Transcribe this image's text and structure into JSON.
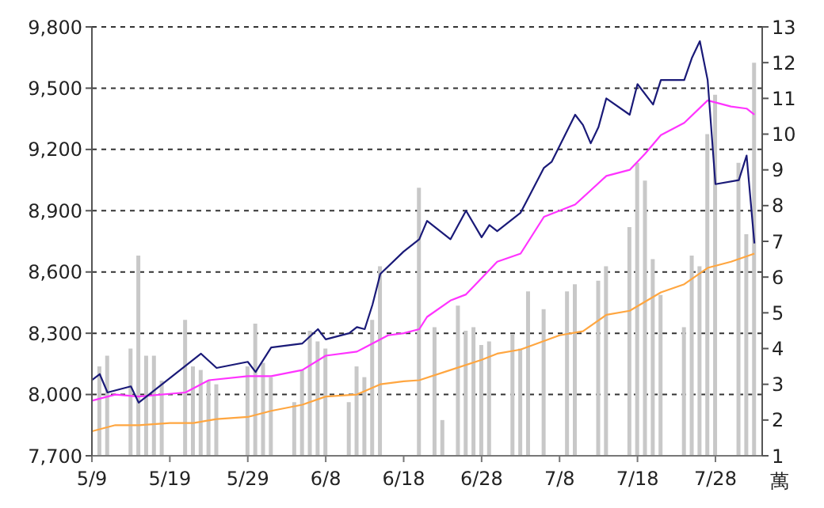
{
  "chart_data": {
    "type": "line",
    "y2label": "萬",
    "xlim": [
      "--05-09",
      "--08-03"
    ],
    "xticks": [
      {
        "value": "--05-09",
        "label": "5/9"
      },
      {
        "value": "--05-19",
        "label": "5/19"
      },
      {
        "value": "--05-29",
        "label": "5/29"
      },
      {
        "value": "--06-08",
        "label": "6/8"
      },
      {
        "value": "--06-18",
        "label": "6/18"
      },
      {
        "value": "--06-28",
        "label": "6/28"
      },
      {
        "value": "--07-08",
        "label": "7/8"
      },
      {
        "value": "--07-18",
        "label": "7/18"
      },
      {
        "value": "--07-28",
        "label": "7/28"
      }
    ],
    "ylim": [
      7700,
      9800
    ],
    "yticks": [
      {
        "value": 7700,
        "label": "7,700"
      },
      {
        "value": 8000,
        "label": "8,000"
      },
      {
        "value": 8300,
        "label": "8,300"
      },
      {
        "value": 8600,
        "label": "8,600"
      },
      {
        "value": 8900,
        "label": "8,900"
      },
      {
        "value": 9200,
        "label": "9,200"
      },
      {
        "value": 9500,
        "label": "9,500"
      },
      {
        "value": 9800,
        "label": "9,800"
      }
    ],
    "y2lim": [
      1,
      13
    ],
    "y2ticks": [
      1,
      2,
      3,
      4,
      5,
      6,
      7,
      8,
      9,
      10,
      11,
      12,
      13
    ],
    "grid": "y",
    "series": [
      {
        "type": "bar",
        "axis": "y2",
        "color": "#c8c8c8",
        "x": [
          "--05-10",
          "--05-11",
          "--05-14",
          "--05-15",
          "--05-16",
          "--05-17",
          "--05-18",
          "--05-21",
          "--05-22",
          "--05-23",
          "--05-24",
          "--05-25",
          "--05-29",
          "--05-30",
          "--05-31",
          "--06-01",
          "--06-04",
          "--06-05",
          "--06-06",
          "--06-07",
          "--06-08",
          "--06-11",
          "--06-12",
          "--06-13",
          "--06-14",
          "--06-15",
          "--06-20",
          "--06-22",
          "--06-23",
          "--06-25",
          "--06-26",
          "--06-27",
          "--06-28",
          "--06-29",
          "--07-02",
          "--07-03",
          "--07-04",
          "--07-06",
          "--07-09",
          "--07-10",
          "--07-13",
          "--07-14",
          "--07-17",
          "--07-18",
          "--07-19",
          "--07-20",
          "--07-21",
          "--07-24",
          "--07-25",
          "--07-26",
          "--07-27",
          "--07-28",
          "--07-31",
          "--08-01",
          "--08-02"
        ],
        "values": [
          3.5,
          3.8,
          4.0,
          6.6,
          3.8,
          3.8,
          3.1,
          4.8,
          3.5,
          3.4,
          3.1,
          3.0,
          3.5,
          4.7,
          3.6,
          3.2,
          2.5,
          3.4,
          4.5,
          4.2,
          4.0,
          2.5,
          3.5,
          3.2,
          4.8,
          6.3,
          8.5,
          4.6,
          2.0,
          5.2,
          4.5,
          4.6,
          4.1,
          4.2,
          4.4,
          4.0,
          5.6,
          5.1,
          5.6,
          5.8,
          5.9,
          6.3,
          7.4,
          9.2,
          8.7,
          6.5,
          5.5,
          4.6,
          6.6,
          6.3,
          10.0,
          11.1,
          9.2,
          7.2,
          12.0
        ]
      },
      {
        "color": "#ffa640",
        "x": [
          "--05-09",
          "--05-12",
          "--05-15",
          "--05-19",
          "--05-22",
          "--05-25",
          "--05-29",
          "--06-01",
          "--06-05",
          "--06-08",
          "--06-12",
          "--06-15",
          "--06-18",
          "--06-20",
          "--06-24",
          "--06-28",
          "--06-30",
          "--07-03",
          "--07-08",
          "--07-11",
          "--07-14",
          "--07-17",
          "--07-21",
          "--07-24",
          "--07-27",
          "--07-30",
          "--08-02"
        ],
        "values": [
          7820,
          7850,
          7850,
          7860,
          7860,
          7880,
          7890,
          7920,
          7950,
          7990,
          8000,
          8050,
          8065,
          8070,
          8120,
          8170,
          8200,
          8220,
          8290,
          8310,
          8390,
          8410,
          8500,
          8540,
          8620,
          8650,
          8690
        ]
      },
      {
        "color": "#ff33ff",
        "x": [
          "--05-09",
          "--05-12",
          "--05-15",
          "--05-21",
          "--05-24",
          "--05-29",
          "--06-01",
          "--06-05",
          "--06-08",
          "--06-12",
          "--06-13",
          "--06-16",
          "--06-18",
          "--06-20",
          "--06-21",
          "--06-24",
          "--06-26",
          "--06-28",
          "--06-30",
          "--07-03",
          "--07-06",
          "--07-10",
          "--07-12",
          "--07-14",
          "--07-17",
          "--07-19",
          "--07-21",
          "--07-24",
          "--07-27",
          "--07-30",
          "--08-01",
          "--08-02"
        ],
        "values": [
          7970,
          8000,
          7990,
          8010,
          8070,
          8090,
          8090,
          8120,
          8190,
          8210,
          8230,
          8290,
          8300,
          8320,
          8380,
          8460,
          8490,
          8570,
          8650,
          8690,
          8870,
          8930,
          9000,
          9070,
          9100,
          9180,
          9270,
          9330,
          9440,
          9410,
          9400,
          9370
        ]
      },
      {
        "color": "#1a1a78",
        "x": [
          "--05-09",
          "--05-10",
          "--05-11",
          "--05-14",
          "--05-15",
          "--05-16",
          "--05-23",
          "--05-25",
          "--05-29",
          "--05-30",
          "--06-01",
          "--06-05",
          "--06-07",
          "--06-08",
          "--06-11",
          "--06-12",
          "--06-13",
          "--06-14",
          "--06-15",
          "--06-18",
          "--06-20",
          "--06-21",
          "--06-24",
          "--06-26",
          "--06-28",
          "--06-29",
          "--06-30",
          "--07-03",
          "--07-06",
          "--07-07",
          "--07-10",
          "--07-11",
          "--07-12",
          "--07-13",
          "--07-14",
          "--07-17",
          "--07-18",
          "--07-20",
          "--07-21",
          "--07-24",
          "--07-25",
          "--07-26",
          "--07-27",
          "--07-28",
          "--07-31",
          "--08-01",
          "--08-02"
        ],
        "values": [
          8070,
          8100,
          8010,
          8040,
          7960,
          7990,
          8200,
          8130,
          8160,
          8110,
          8230,
          8250,
          8320,
          8270,
          8300,
          8330,
          8320,
          8440,
          8590,
          8700,
          8760,
          8850,
          8760,
          8900,
          8770,
          8830,
          8800,
          8890,
          9110,
          9140,
          9370,
          9320,
          9230,
          9310,
          9450,
          9370,
          9520,
          9420,
          9540,
          9540,
          9650,
          9730,
          9540,
          9030,
          9050,
          9170,
          8740
        ]
      }
    ]
  }
}
